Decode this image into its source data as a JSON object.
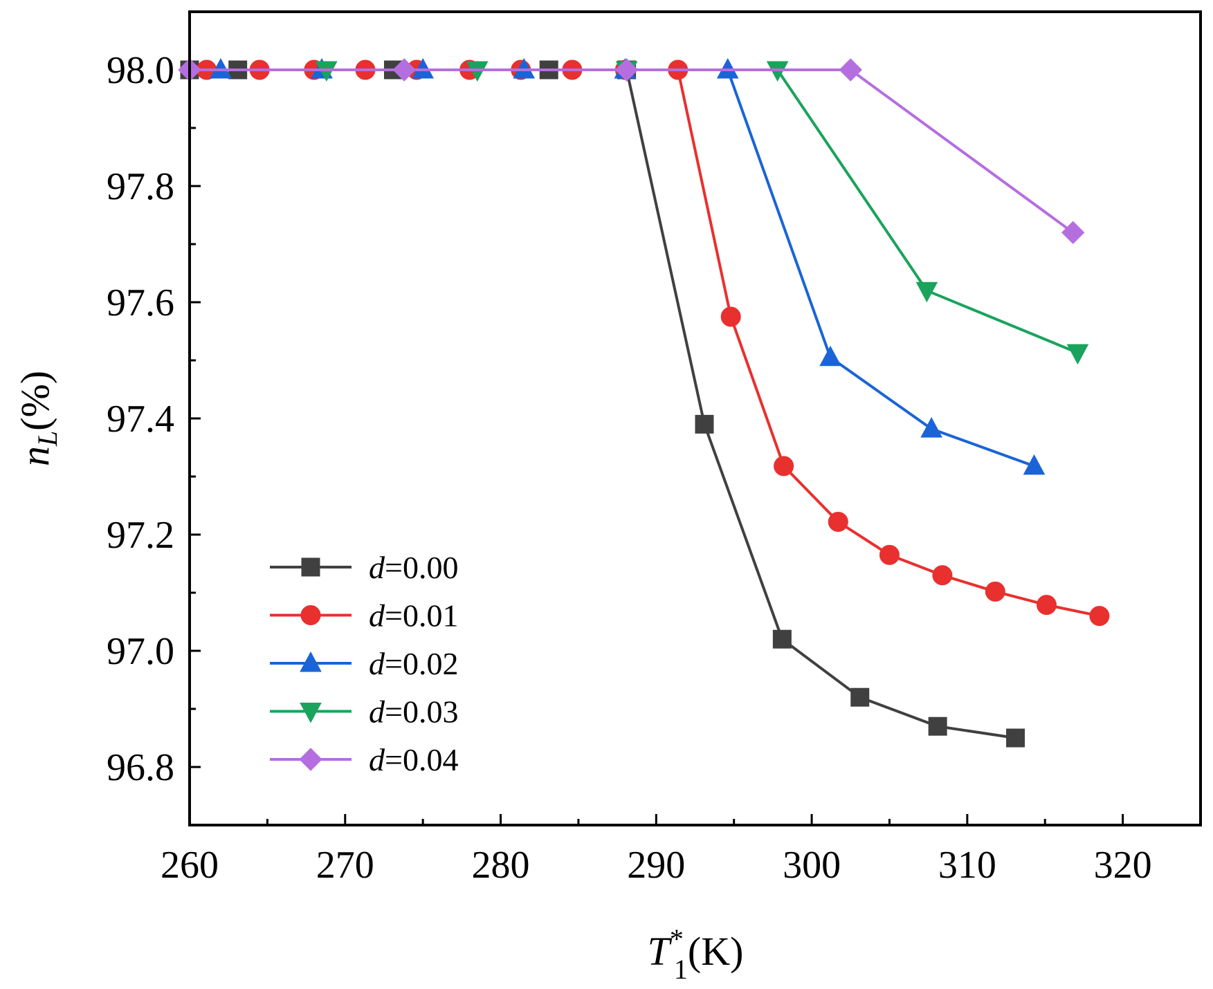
{
  "chart_data": {
    "type": "line",
    "title": "",
    "xlabel": {
      "main": "T",
      "sub": "1",
      "sup": "*",
      "unit": "(K)"
    },
    "ylabel": {
      "main": "n",
      "sub": "L",
      "unit": "(%)"
    },
    "xlim": [
      260,
      325
    ],
    "ylim": [
      96.7,
      98.1
    ],
    "xticks": [
      260,
      270,
      280,
      290,
      300,
      310,
      320
    ],
    "xtick_labels": [
      "260",
      "270",
      "280",
      "290",
      "300",
      "310",
      "320"
    ],
    "yticks": [
      96.8,
      97.0,
      97.2,
      97.4,
      97.6,
      97.8,
      98.0
    ],
    "ytick_labels": [
      "96.8",
      "97.0",
      "97.2",
      "97.4",
      "97.6",
      "97.8",
      "98.0"
    ],
    "grid": false,
    "legend_position": "bottom-left",
    "series": [
      {
        "name": "d=0.00",
        "label_var": "d",
        "label_value": "=0.00",
        "color": "#404040",
        "marker": "square",
        "x": [
          260.0,
          263.1,
          273.1,
          283.1,
          288.1,
          293.1,
          298.1,
          303.1,
          308.1,
          313.1
        ],
        "y": [
          98.0,
          98.0,
          98.0,
          98.0,
          98.0,
          97.39,
          97.02,
          96.92,
          96.87,
          96.85
        ]
      },
      {
        "name": "d=0.01",
        "label_var": "d",
        "label_value": "=0.01",
        "color": "#e8302f",
        "marker": "circle",
        "x": [
          261.1,
          264.5,
          268.0,
          271.3,
          274.6,
          278.0,
          281.3,
          284.6,
          288.0,
          291.4,
          294.8,
          298.2,
          301.7,
          305.0,
          308.4,
          311.8,
          315.1,
          318.5
        ],
        "y": [
          98.0,
          98.0,
          98.0,
          98.0,
          98.0,
          98.0,
          98.0,
          98.0,
          98.0,
          98.0,
          97.575,
          97.318,
          97.222,
          97.165,
          97.13,
          97.102,
          97.079,
          97.06
        ]
      },
      {
        "name": "d=0.02",
        "label_var": "d",
        "label_value": "=0.02",
        "color": "#1a64d8",
        "marker": "triangle-up",
        "x": [
          262.0,
          268.5,
          275.0,
          281.5,
          288.0,
          294.6,
          301.2,
          307.7,
          314.3
        ],
        "y": [
          98.0,
          98.0,
          98.0,
          98.0,
          98.0,
          98.0,
          97.505,
          97.382,
          97.318
        ]
      },
      {
        "name": "d=0.03",
        "label_var": "d",
        "label_value": "=0.03",
        "color": "#1aa35c",
        "marker": "triangle-down",
        "x": [
          268.8,
          278.5,
          288.1,
          297.8,
          307.4,
          317.1
        ],
        "y": [
          98.0,
          98.0,
          98.0,
          98.0,
          97.62,
          97.513
        ]
      },
      {
        "name": "d=0.04",
        "label_var": "d",
        "label_value": "=0.04",
        "color": "#b56ee0",
        "marker": "diamond",
        "x": [
          260.0,
          273.8,
          288.1,
          302.5,
          316.8
        ],
        "y": [
          98.0,
          98.0,
          98.0,
          98.0,
          97.72
        ]
      }
    ]
  }
}
